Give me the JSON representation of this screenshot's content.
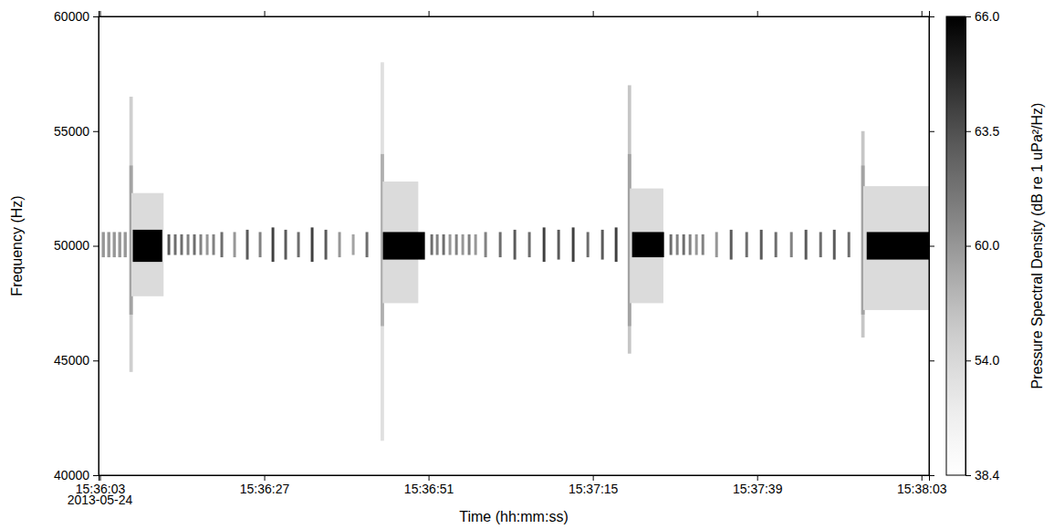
{
  "chart_data": {
    "type": "heatmap",
    "x_label": "Time (hh:mm:ss)",
    "y_label": "Frequency (Hz)",
    "xlim": [
      56162.8,
      56284.1
    ],
    "xticks": [
      {
        "value": 56163,
        "label": "15:36:03"
      },
      {
        "value": 56187,
        "label": "15:36:27"
      },
      {
        "value": 56211,
        "label": "15:36:51"
      },
      {
        "value": 56235,
        "label": "15:37:15"
      },
      {
        "value": 56259,
        "label": "15:37:39"
      },
      {
        "value": 56283,
        "label": "15:38:03"
      }
    ],
    "ylim": [
      40000,
      60000
    ],
    "yticks": [
      40000,
      45000,
      50000,
      55000,
      60000
    ],
    "annotations": [
      {
        "text": "2013-05-24",
        "x": 56163
      }
    ],
    "colorbar": {
      "label": "Pressure Spectral Density (dB re 1 uPa²/Hz)",
      "range": [
        38.4,
        66.0
      ],
      "ticks": [
        38.4,
        {
          "value": 54.0,
          "label": "54.0"
        },
        {
          "value": 60.0,
          "label": "60.0"
        },
        63.5,
        {
          "value": 66.0,
          "label": "66.0"
        }
      ]
    },
    "cells": [
      {
        "t0": 56163.27,
        "t1": 56163.72,
        "f0": 49500,
        "f1": 50600,
        "psd": 60
      },
      {
        "t0": 56164.07,
        "t1": 56164.52,
        "f0": 49500,
        "f1": 50600,
        "psd": 60
      },
      {
        "t0": 56164.87,
        "t1": 56165.32,
        "f0": 49500,
        "f1": 50600,
        "psd": 60
      },
      {
        "t0": 56165.67,
        "t1": 56166.12,
        "f0": 49500,
        "f1": 50600,
        "psd": 60
      },
      {
        "t0": 56166.47,
        "t1": 56166.92,
        "f0": 49500,
        "f1": 50600,
        "psd": 60
      },
      {
        "t0": 56167.3,
        "t1": 56167.8,
        "f0": 44500,
        "f1": 56500,
        "psd": 55
      },
      {
        "t0": 56167.3,
        "t1": 56167.8,
        "f0": 47000,
        "f1": 53500,
        "psd": 59
      },
      {
        "t0": 56167.6,
        "t1": 56172.3,
        "f0": 47800,
        "f1": 52300,
        "psd": 53
      },
      {
        "t0": 56167.8,
        "t1": 56172.1,
        "f0": 49300,
        "f1": 50700,
        "psd": 66
      },
      {
        "t0": 56172.87,
        "t1": 56173.27,
        "f0": 49600,
        "f1": 50500,
        "psd": 63
      },
      {
        "t0": 56173.8,
        "t1": 56174.2,
        "f0": 49600,
        "f1": 50500,
        "psd": 62
      },
      {
        "t0": 56174.73,
        "t1": 56175.13,
        "f0": 49600,
        "f1": 50500,
        "psd": 62
      },
      {
        "t0": 56175.67,
        "t1": 56176.07,
        "f0": 49600,
        "f1": 50500,
        "psd": 61
      },
      {
        "t0": 56176.6,
        "t1": 56177.0,
        "f0": 49600,
        "f1": 50500,
        "psd": 62
      },
      {
        "t0": 56177.53,
        "t1": 56177.93,
        "f0": 49600,
        "f1": 50500,
        "psd": 61
      },
      {
        "t0": 56178.47,
        "t1": 56178.87,
        "f0": 49600,
        "f1": 50500,
        "psd": 60
      },
      {
        "t0": 56179.4,
        "t1": 56179.8,
        "f0": 49600,
        "f1": 50500,
        "psd": 61
      },
      {
        "t0": 56180.6,
        "t1": 56181.0,
        "f0": 49500,
        "f1": 50600,
        "psd": 62
      },
      {
        "t0": 56182.47,
        "t1": 56182.87,
        "f0": 49500,
        "f1": 50600,
        "psd": 60
      },
      {
        "t0": 56184.33,
        "t1": 56184.73,
        "f0": 49400,
        "f1": 50700,
        "psd": 63
      },
      {
        "t0": 56186.2,
        "t1": 56186.6,
        "f0": 49500,
        "f1": 50600,
        "psd": 61
      },
      {
        "t0": 56188.07,
        "t1": 56188.47,
        "f0": 49300,
        "f1": 50800,
        "psd": 64
      },
      {
        "t0": 56189.93,
        "t1": 56190.33,
        "f0": 49400,
        "f1": 50700,
        "psd": 63
      },
      {
        "t0": 56191.8,
        "t1": 56192.2,
        "f0": 49500,
        "f1": 50600,
        "psd": 62
      },
      {
        "t0": 56193.8,
        "t1": 56194.2,
        "f0": 49300,
        "f1": 50800,
        "psd": 64
      },
      {
        "t0": 56195.8,
        "t1": 56196.2,
        "f0": 49400,
        "f1": 50700,
        "psd": 63
      },
      {
        "t0": 56197.8,
        "t1": 56198.2,
        "f0": 49500,
        "f1": 50600,
        "psd": 60
      },
      {
        "t0": 56199.8,
        "t1": 56200.2,
        "f0": 49600,
        "f1": 50500,
        "psd": 59
      },
      {
        "t0": 56201.8,
        "t1": 56202.2,
        "f0": 49500,
        "f1": 50600,
        "psd": 62
      },
      {
        "t0": 56204.0,
        "t1": 56204.5,
        "f0": 41500,
        "f1": 58000,
        "psd": 52
      },
      {
        "t0": 56204.0,
        "t1": 56204.5,
        "f0": 46500,
        "f1": 54000,
        "psd": 58
      },
      {
        "t0": 56204.3,
        "t1": 56209.5,
        "f0": 47500,
        "f1": 52800,
        "psd": 53
      },
      {
        "t0": 56204.33,
        "t1": 56210.47,
        "f0": 49400,
        "f1": 50600,
        "psd": 66
      },
      {
        "t0": 56211.27,
        "t1": 56211.67,
        "f0": 49600,
        "f1": 50500,
        "psd": 62
      },
      {
        "t0": 56212.07,
        "t1": 56212.47,
        "f0": 49600,
        "f1": 50500,
        "psd": 61
      },
      {
        "t0": 56213.0,
        "t1": 56213.4,
        "f0": 49600,
        "f1": 50500,
        "psd": 62
      },
      {
        "t0": 56213.93,
        "t1": 56214.33,
        "f0": 49600,
        "f1": 50500,
        "psd": 60
      },
      {
        "t0": 56214.87,
        "t1": 56215.27,
        "f0": 49600,
        "f1": 50500,
        "psd": 61
      },
      {
        "t0": 56215.8,
        "t1": 56216.2,
        "f0": 49600,
        "f1": 50500,
        "psd": 60
      },
      {
        "t0": 56216.73,
        "t1": 56217.13,
        "f0": 49600,
        "f1": 50500,
        "psd": 61
      },
      {
        "t0": 56217.67,
        "t1": 56218.07,
        "f0": 49600,
        "f1": 50500,
        "psd": 60
      },
      {
        "t0": 56219.13,
        "t1": 56219.53,
        "f0": 49500,
        "f1": 50600,
        "psd": 61
      },
      {
        "t0": 56221.27,
        "t1": 56221.67,
        "f0": 49500,
        "f1": 50600,
        "psd": 62
      },
      {
        "t0": 56223.4,
        "t1": 56223.8,
        "f0": 49400,
        "f1": 50700,
        "psd": 63
      },
      {
        "t0": 56225.53,
        "t1": 56225.93,
        "f0": 49500,
        "f1": 50600,
        "psd": 62
      },
      {
        "t0": 56227.67,
        "t1": 56228.07,
        "f0": 49300,
        "f1": 50800,
        "psd": 64
      },
      {
        "t0": 56229.8,
        "t1": 56230.2,
        "f0": 49400,
        "f1": 50700,
        "psd": 63
      },
      {
        "t0": 56231.93,
        "t1": 56232.33,
        "f0": 49300,
        "f1": 50800,
        "psd": 64
      },
      {
        "t0": 56234.07,
        "t1": 56234.47,
        "f0": 49500,
        "f1": 50600,
        "psd": 62
      },
      {
        "t0": 56236.2,
        "t1": 56236.6,
        "f0": 49400,
        "f1": 50700,
        "psd": 63
      },
      {
        "t0": 56238.2,
        "t1": 56238.6,
        "f0": 49300,
        "f1": 50800,
        "psd": 64
      },
      {
        "t0": 56240.1,
        "t1": 56240.6,
        "f0": 45300,
        "f1": 57000,
        "psd": 56
      },
      {
        "t0": 56240.1,
        "t1": 56240.6,
        "f0": 46500,
        "f1": 54000,
        "psd": 59
      },
      {
        "t0": 56240.4,
        "t1": 56245.3,
        "f0": 47500,
        "f1": 52500,
        "psd": 53
      },
      {
        "t0": 56240.73,
        "t1": 56245.4,
        "f0": 49500,
        "f1": 50600,
        "psd": 66
      },
      {
        "t0": 56246.2,
        "t1": 56246.6,
        "f0": 49600,
        "f1": 50500,
        "psd": 62
      },
      {
        "t0": 56247.13,
        "t1": 56247.53,
        "f0": 49600,
        "f1": 50500,
        "psd": 61
      },
      {
        "t0": 56248.07,
        "t1": 56248.47,
        "f0": 49600,
        "f1": 50500,
        "psd": 62
      },
      {
        "t0": 56249.0,
        "t1": 56249.4,
        "f0": 49600,
        "f1": 50500,
        "psd": 61
      },
      {
        "t0": 56249.93,
        "t1": 56250.33,
        "f0": 49600,
        "f1": 50500,
        "psd": 60
      },
      {
        "t0": 56250.87,
        "t1": 56251.27,
        "f0": 49600,
        "f1": 50500,
        "psd": 61
      },
      {
        "t0": 56252.87,
        "t1": 56253.27,
        "f0": 49500,
        "f1": 50600,
        "psd": 60
      },
      {
        "t0": 56255.0,
        "t1": 56255.4,
        "f0": 49400,
        "f1": 50700,
        "psd": 63
      },
      {
        "t0": 56257.27,
        "t1": 56257.67,
        "f0": 49500,
        "f1": 50600,
        "psd": 62
      },
      {
        "t0": 56259.4,
        "t1": 56259.8,
        "f0": 49400,
        "f1": 50700,
        "psd": 63
      },
      {
        "t0": 56261.53,
        "t1": 56261.93,
        "f0": 49500,
        "f1": 50600,
        "psd": 62
      },
      {
        "t0": 56263.8,
        "t1": 56264.2,
        "f0": 49500,
        "f1": 50600,
        "psd": 61
      },
      {
        "t0": 56265.93,
        "t1": 56266.33,
        "f0": 49400,
        "f1": 50700,
        "psd": 63
      },
      {
        "t0": 56268.07,
        "t1": 56268.47,
        "f0": 49500,
        "f1": 50600,
        "psd": 62
      },
      {
        "t0": 56270.07,
        "t1": 56270.47,
        "f0": 49400,
        "f1": 50700,
        "psd": 63
      },
      {
        "t0": 56272.2,
        "t1": 56272.6,
        "f0": 49500,
        "f1": 50600,
        "psd": 62
      },
      {
        "t0": 56274.2,
        "t1": 56274.7,
        "f0": 46000,
        "f1": 55000,
        "psd": 56
      },
      {
        "t0": 56274.2,
        "t1": 56274.7,
        "f0": 47000,
        "f1": 53500,
        "psd": 59
      },
      {
        "t0": 56274.5,
        "t1": 56284.1,
        "f0": 47200,
        "f1": 52600,
        "psd": 53
      },
      {
        "t0": 56275.0,
        "t1": 56284.1,
        "f0": 49400,
        "f1": 50600,
        "psd": 66
      }
    ]
  }
}
